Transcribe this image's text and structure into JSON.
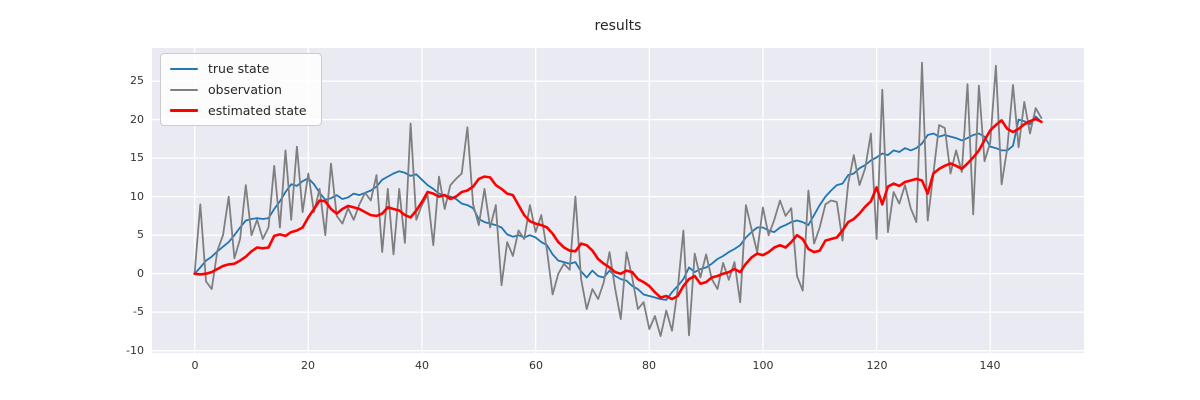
{
  "figure": {
    "title": "results",
    "background_color": "#ffffff",
    "plot_background_color": "#eaeaf2",
    "grid_color": "#ffffff",
    "text_color": "#262626"
  },
  "legend": {
    "position": "upper left",
    "items": [
      {
        "label": "true state",
        "color": "#1f77b4",
        "line_width": 2
      },
      {
        "label": "observation",
        "color": "#7f7f7f",
        "line_width": 2
      },
      {
        "label": "estimated state",
        "color": "#ff0000",
        "line_width": 3
      }
    ]
  },
  "axes": {
    "x_ticks": [
      0,
      20,
      40,
      60,
      80,
      100,
      120,
      140
    ],
    "y_ticks": [
      -10,
      -5,
      0,
      5,
      10,
      15,
      20,
      25
    ],
    "xlim": [
      -7.5,
      156.5
    ],
    "ylim": [
      -10.3,
      29.3
    ],
    "grid": true
  },
  "chart_data": {
    "type": "line",
    "title": "results",
    "xlabel": "",
    "ylabel": "",
    "x_start": 0,
    "x_step": 1,
    "n_points": 150,
    "legend_position": "upper left",
    "grid": true,
    "series": [
      {
        "name": "true state",
        "color": "#1f77b4",
        "width": 1.8,
        "values": [
          0.0,
          0.8,
          1.7,
          2.2,
          2.9,
          3.5,
          4.1,
          5.0,
          6.0,
          6.9,
          7.1,
          7.2,
          7.1,
          7.2,
          8.4,
          9.4,
          10.6,
          11.6,
          11.4,
          12.0,
          12.4,
          11.6,
          10.5,
          9.6,
          9.8,
          10.2,
          9.7,
          9.9,
          10.4,
          10.2,
          10.5,
          10.8,
          11.3,
          12.2,
          12.6,
          13.0,
          13.3,
          13.1,
          12.7,
          12.9,
          12.2,
          11.5,
          11.0,
          10.4,
          10.2,
          10.0,
          9.7,
          9.1,
          8.9,
          8.5,
          7.1,
          6.7,
          6.5,
          6.3,
          6.0,
          5.1,
          4.8,
          5.0,
          4.7,
          5.0,
          4.7,
          4.1,
          3.7,
          2.5,
          1.7,
          1.5,
          1.3,
          1.5,
          0.3,
          -0.5,
          0.4,
          -0.3,
          -0.5,
          0.4,
          -0.3,
          -0.7,
          -0.9,
          -1.6,
          -2.0,
          -2.7,
          -2.9,
          -3.1,
          -3.3,
          -3.4,
          -2.4,
          -1.6,
          -0.7,
          0.8,
          0.2,
          0.6,
          0.8,
          1.3,
          1.9,
          2.3,
          2.8,
          3.2,
          3.7,
          4.7,
          5.4,
          6.0,
          6.0,
          5.6,
          5.4,
          6.0,
          6.3,
          6.7,
          6.9,
          6.7,
          6.3,
          7.6,
          8.9,
          10.0,
          10.8,
          11.5,
          11.7,
          12.8,
          13.0,
          13.7,
          14.1,
          14.7,
          15.1,
          15.6,
          15.4,
          16.0,
          15.8,
          16.3,
          16.0,
          16.3,
          16.9,
          18.0,
          18.2,
          17.8,
          18.0,
          17.8,
          17.6,
          17.3,
          17.6,
          18.0,
          18.2,
          17.8,
          16.5,
          16.3,
          16.0,
          16.0,
          16.6,
          20.0,
          19.8,
          19.4,
          20.4,
          19.7
        ]
      },
      {
        "name": "observation",
        "color": "#7f7f7f",
        "width": 1.8,
        "values": [
          0.0,
          9.0,
          -1.0,
          -2.0,
          3.0,
          5.0,
          10.0,
          2.0,
          4.5,
          11.5,
          5.0,
          7.0,
          4.5,
          6.0,
          14.0,
          6.0,
          16.0,
          7.0,
          16.5,
          8.0,
          13.0,
          8.0,
          11.0,
          5.0,
          14.3,
          7.5,
          6.5,
          8.5,
          7.0,
          9.0,
          10.5,
          9.5,
          12.8,
          2.8,
          11.0,
          2.5,
          11.0,
          4.0,
          19.5,
          7.0,
          8.9,
          10.2,
          3.7,
          12.6,
          8.4,
          11.5,
          12.3,
          13.0,
          19.0,
          9.0,
          6.3,
          11.0,
          6.0,
          8.9,
          -1.5,
          4.1,
          2.3,
          5.6,
          4.5,
          8.9,
          5.4,
          7.6,
          3.0,
          -2.7,
          0.0,
          1.3,
          0.5,
          10.0,
          -0.7,
          -4.6,
          -2.0,
          -3.3,
          -1.1,
          2.8,
          -2.0,
          -5.9,
          2.8,
          -0.5,
          -4.6,
          -3.7,
          -7.2,
          -5.5,
          -8.1,
          -4.8,
          -7.4,
          -2.0,
          5.6,
          -8.0,
          2.6,
          -0.5,
          2.5,
          -0.7,
          -2.0,
          1.4,
          -0.8,
          1.5,
          -3.7,
          8.9,
          5.8,
          2.8,
          8.6,
          5.0,
          7.0,
          9.5,
          7.5,
          8.5,
          -0.3,
          -2.2,
          10.8,
          3.9,
          6.0,
          9.0,
          9.5,
          9.3,
          4.3,
          11.7,
          15.4,
          11.5,
          13.7,
          18.2,
          4.5,
          23.9,
          5.4,
          10.6,
          9.1,
          11.5,
          8.5,
          6.7,
          27.4,
          6.9,
          13.0,
          19.3,
          18.9,
          13.0,
          16.0,
          13.2,
          24.6,
          7.7,
          24.4,
          14.6,
          17.0,
          27.0,
          11.6,
          16.3,
          24.5,
          16.4,
          22.3,
          18.2,
          21.5,
          20.2
        ]
      },
      {
        "name": "estimated state",
        "color": "#ff0000",
        "width": 2.6,
        "values": [
          0.0,
          -0.1,
          0.0,
          0.2,
          0.6,
          1.0,
          1.2,
          1.3,
          1.7,
          2.2,
          2.9,
          3.4,
          3.3,
          3.4,
          4.9,
          5.1,
          4.9,
          5.4,
          5.6,
          6.0,
          7.3,
          8.4,
          9.5,
          9.4,
          8.4,
          7.8,
          8.4,
          8.8,
          8.6,
          8.4,
          8.0,
          7.6,
          7.5,
          7.8,
          8.6,
          8.4,
          8.2,
          7.6,
          7.3,
          8.2,
          9.3,
          10.6,
          10.4,
          10.0,
          10.2,
          9.7,
          10.0,
          10.6,
          10.8,
          11.3,
          12.3,
          12.6,
          12.5,
          11.5,
          11.0,
          10.4,
          10.2,
          8.9,
          7.6,
          6.8,
          6.5,
          6.3,
          6.0,
          5.2,
          4.1,
          3.4,
          3.0,
          2.9,
          3.9,
          3.7,
          3.0,
          1.9,
          1.3,
          0.8,
          0.2,
          0.0,
          0.4,
          0.2,
          -0.7,
          -1.1,
          -1.6,
          -2.4,
          -3.1,
          -2.9,
          -3.3,
          -2.9,
          -1.6,
          -0.7,
          -0.3,
          -1.3,
          -1.1,
          -0.5,
          -0.3,
          0.0,
          0.2,
          0.6,
          0.2,
          1.3,
          2.1,
          2.6,
          2.4,
          2.8,
          3.4,
          3.7,
          3.4,
          4.1,
          5.0,
          4.5,
          3.2,
          2.8,
          3.0,
          4.3,
          4.5,
          4.7,
          5.6,
          6.7,
          7.1,
          7.8,
          8.7,
          9.4,
          11.2,
          9.0,
          11.3,
          11.7,
          11.4,
          11.9,
          12.1,
          12.3,
          12.1,
          10.4,
          13.0,
          13.6,
          14.0,
          14.3,
          14.0,
          13.6,
          14.3,
          15.1,
          16.0,
          17.3,
          18.6,
          19.3,
          19.9,
          18.8,
          18.4,
          18.8,
          19.4,
          19.8,
          20.1,
          19.7
        ]
      }
    ]
  }
}
